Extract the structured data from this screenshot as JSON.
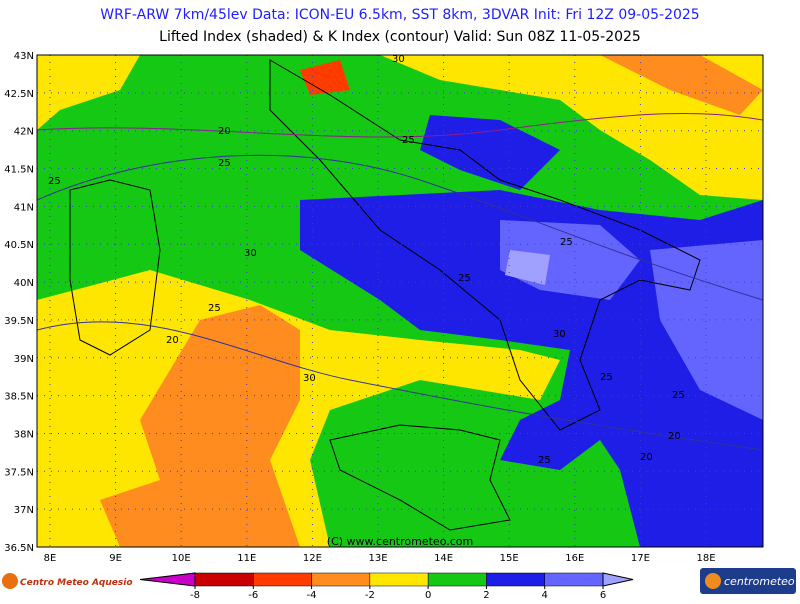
{
  "header": {
    "line1": "WRF-ARW 7km/45lev   Data: ICON-EU 6.5km, SST 8km, 3DVAR   Init: Fri 12Z 09-05-2025",
    "line2": "Lifted Index (shaded) & K Index (contour)   Valid: Sun 08Z 11-05-2025"
  },
  "map": {
    "lat_ticks": [
      {
        "value": 43,
        "label": "43N"
      },
      {
        "value": 42.5,
        "label": "42.5N"
      },
      {
        "value": 42,
        "label": "42N"
      },
      {
        "value": 41.5,
        "label": "41.5N"
      },
      {
        "value": 41,
        "label": "41N"
      },
      {
        "value": 40.5,
        "label": "40.5N"
      },
      {
        "value": 40,
        "label": "40N"
      },
      {
        "value": 39.5,
        "label": "39.5N"
      },
      {
        "value": 39,
        "label": "39N"
      },
      {
        "value": 38.5,
        "label": "38.5N"
      },
      {
        "value": 38,
        "label": "38N"
      },
      {
        "value": 37.5,
        "label": "37.5N"
      },
      {
        "value": 37,
        "label": "37N"
      },
      {
        "value": 36.5,
        "label": "36.5N"
      }
    ],
    "lon_ticks": [
      {
        "value": 8,
        "label": "8E"
      },
      {
        "value": 9,
        "label": "9E"
      },
      {
        "value": 10,
        "label": "10E"
      },
      {
        "value": 11,
        "label": "11E"
      },
      {
        "value": 12,
        "label": "12E"
      },
      {
        "value": 13,
        "label": "13E"
      },
      {
        "value": 14,
        "label": "14E"
      },
      {
        "value": 15,
        "label": "15E"
      },
      {
        "value": 16,
        "label": "16E"
      },
      {
        "value": 17,
        "label": "17E"
      },
      {
        "value": 18,
        "label": "18E"
      }
    ],
    "contour_labels": [
      30,
      25,
      20,
      25,
      25,
      30,
      25,
      25,
      20,
      25,
      30,
      20,
      25,
      30,
      25,
      20,
      25
    ],
    "credit": "(C) www.centrometeo.com"
  },
  "colorbar": {
    "ticks": [
      -8,
      -6,
      -4,
      -2,
      0,
      2,
      4,
      6
    ],
    "colors": [
      "#c800c8",
      "#c80000",
      "#ff3c00",
      "#ff8c1e",
      "#ffe600",
      "#14c814",
      "#1e1ee6",
      "#6464ff",
      "#a0a0ff"
    ]
  },
  "footer": {
    "left_logo": "Centro Meteo Aquesio",
    "right_logo": "centrometeo"
  }
}
